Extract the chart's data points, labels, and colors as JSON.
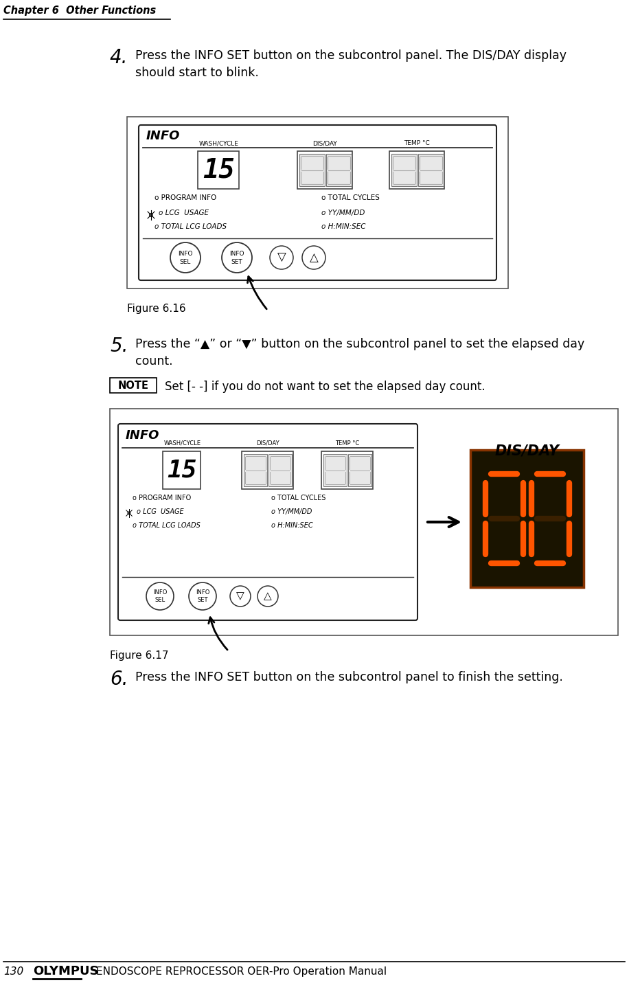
{
  "bg_color": "#ffffff",
  "header_text": "Chapter 6  Other Functions",
  "footer_page": "130",
  "footer_brand": "OLYMPUS",
  "footer_manual": "ENDOSCOPE REPROCESSOR OER-Pro Operation Manual",
  "step4_number": "4.",
  "step4_line1": "Press the INFO SET button on the subcontrol panel. The DIS/DAY display",
  "step4_line2": "should start to blink.",
  "figure16_caption": "Figure 6.16",
  "step5_number": "5.",
  "step5_line1": "Press the “▲” or “▼” button on the subcontrol panel to set the elapsed day",
  "step5_line2": "count.",
  "note_label": "NOTE",
  "note_text": "Set [- -] if you do not want to set the elapsed day count.",
  "figure17_caption": "Figure 6.17",
  "step6_number": "6.",
  "step6_text": "Press the INFO SET button on the subcontrol panel to finish the setting.",
  "panel_sublabels": [
    "WASH/CYCLE",
    "DIS/DAY",
    "TEMP °C"
  ],
  "dis_day_label": "DIS/DAY"
}
